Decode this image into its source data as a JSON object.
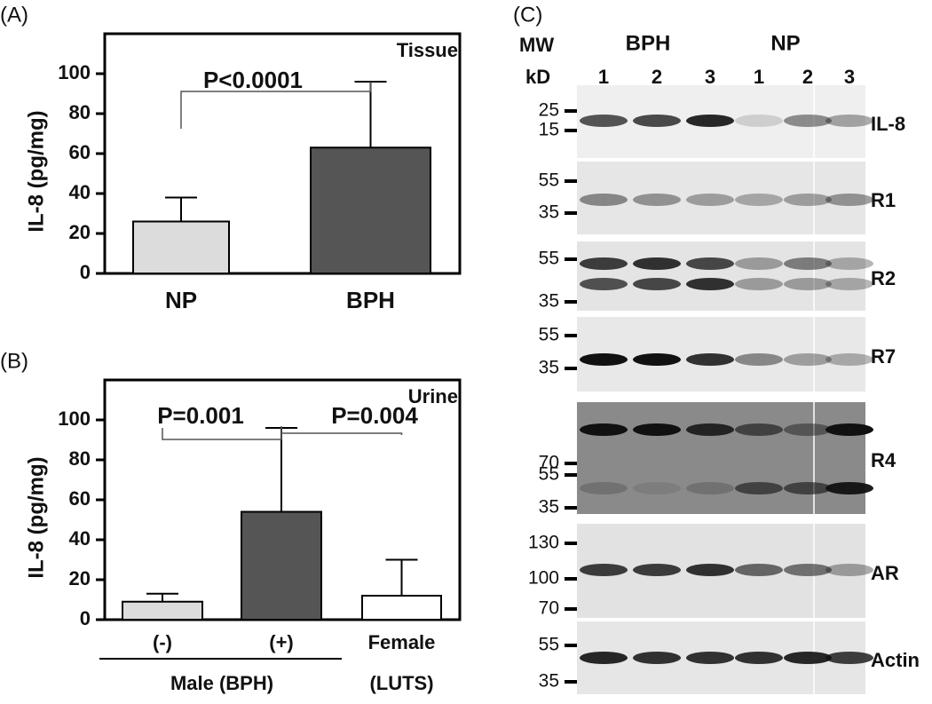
{
  "chart_data": [
    {
      "type": "bar",
      "panel": "(A)",
      "title": "Tissue",
      "y_label": "IL-8 (pg/mg)",
      "categories": [
        "NP",
        "BPH"
      ],
      "values": [
        26,
        63
      ],
      "errors": [
        12,
        33
      ],
      "colors": [
        "#dcdcdc",
        "#555555"
      ],
      "ylim": [
        0,
        120
      ],
      "yticks": [
        0,
        20,
        40,
        60,
        80,
        100
      ],
      "annotations": [
        "P<0.0001"
      ]
    },
    {
      "type": "bar",
      "panel": "(B)",
      "title": "Urine",
      "y_label": "IL-8 (pg/mg)",
      "categories": [
        "(-)",
        "(+)",
        "Female"
      ],
      "values": [
        9,
        54,
        12
      ],
      "errors": [
        4,
        42,
        18
      ],
      "colors": [
        "#dcdcdc",
        "#555555",
        "#ffffff"
      ],
      "ylim": [
        0,
        120
      ],
      "yticks": [
        0,
        20,
        40,
        60,
        80,
        100
      ],
      "annotations": [
        "P=0.001",
        "P=0.004"
      ],
      "groups": [
        "Male (BPH)",
        "(LUTS)"
      ]
    }
  ],
  "blot": {
    "panel": "(C)",
    "mw": "MW",
    "kd": "kD",
    "groups": [
      "BPH",
      "NP"
    ],
    "lanes": [
      "1",
      "2",
      "3",
      "1",
      "2",
      "3"
    ],
    "rows": [
      {
        "name": "IL-8",
        "markers": [
          "25",
          "15"
        ]
      },
      {
        "name": "R1",
        "markers": [
          "55",
          "35"
        ]
      },
      {
        "name": "R2",
        "markers": [
          "55",
          "35"
        ]
      },
      {
        "name": "R7",
        "markers": [
          "55",
          "35"
        ]
      },
      {
        "name": "R4",
        "markers": [
          "70",
          "55",
          "35"
        ]
      },
      {
        "name": "AR",
        "markers": [
          "130",
          "100",
          "70"
        ]
      },
      {
        "name": "Actin",
        "markers": [
          "55",
          "35"
        ]
      }
    ]
  }
}
